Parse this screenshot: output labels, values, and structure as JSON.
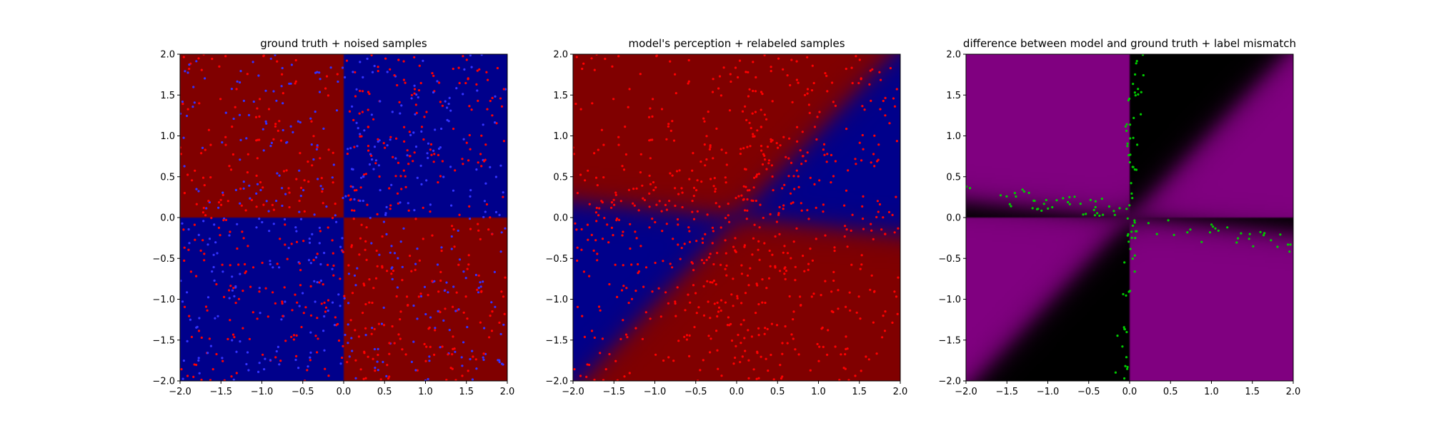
{
  "chart_data": [
    {
      "type": "heatmap",
      "panel": "ground_truth",
      "title": "ground truth + noised samples",
      "xlabel": "",
      "ylabel": "",
      "xlim": [
        -2.0,
        2.0
      ],
      "ylim": [
        -2.0,
        2.0
      ],
      "xticks": [
        "−2.0",
        "−1.5",
        "−1.0",
        "−0.5",
        "0.0",
        "0.5",
        "1.0",
        "1.5",
        "2.0"
      ],
      "yticks": [
        "−2.0",
        "−1.5",
        "−1.0",
        "−0.5",
        "0.0",
        "0.5",
        "1.0",
        "1.5",
        "2.0"
      ],
      "grid": false,
      "background": "XOR checkerboard: sign(x)·sign(y) < 0 → red, > 0 → blue",
      "region_colors": {
        "positive_class": "#800000",
        "negative_class": "#00008b"
      },
      "scatter_colors": [
        "#ff0000",
        "#3333ff"
      ],
      "approx_num_points": 1000
    },
    {
      "type": "heatmap",
      "panel": "model_perception",
      "title": "model's perception + relabeled samples",
      "xlabel": "",
      "ylabel": "",
      "xlim": [
        -2.0,
        2.0
      ],
      "ylim": [
        -2.0,
        2.0
      ],
      "xticks": [
        "−2.0",
        "−1.5",
        "−1.0",
        "−0.5",
        "0.0",
        "0.5",
        "1.0",
        "1.5",
        "2.0"
      ],
      "yticks": [
        "−2.0",
        "−1.5",
        "−1.0",
        "−0.5",
        "0.0",
        "0.5",
        "1.0",
        "1.5",
        "2.0"
      ],
      "grid": false,
      "background": "Smooth learned decision regions with rotated, blurred boundaries",
      "region_colors": {
        "positive_class": "#800000",
        "negative_class": "#00008b"
      },
      "scatter_colors": [
        "#ff0000"
      ],
      "approx_num_points": 1000
    },
    {
      "type": "heatmap",
      "panel": "difference",
      "title": "difference between model and ground truth + label mismatch",
      "xlabel": "",
      "ylabel": "",
      "xlim": [
        -2.0,
        2.0
      ],
      "ylim": [
        -2.0,
        2.0
      ],
      "xticks": [
        "−2.0",
        "−1.5",
        "−1.0",
        "−0.5",
        "0.0",
        "0.5",
        "1.0",
        "1.5",
        "2.0"
      ],
      "yticks": [
        "−2.0",
        "−1.5",
        "−1.0",
        "−0.5",
        "0.0",
        "0.5",
        "1.0",
        "1.5",
        "2.0"
      ],
      "grid": false,
      "background": "Purple where model agrees, black where it disagrees",
      "region_colors": {
        "agree": "#800080",
        "disagree": "#000000"
      },
      "scatter_colors": [
        "#00cc00"
      ],
      "approx_num_points": 140
    }
  ]
}
